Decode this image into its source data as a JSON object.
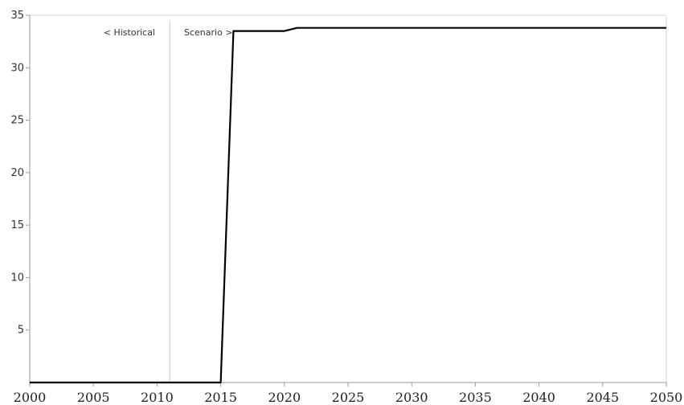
{
  "chart_data": {
    "type": "line",
    "title": "",
    "xlabel": "",
    "ylabel": "",
    "xlim": [
      2000,
      2050
    ],
    "ylim": [
      0,
      35
    ],
    "x_ticks": [
      2000,
      2005,
      2010,
      2015,
      2020,
      2025,
      2030,
      2035,
      2040,
      2045,
      2050
    ],
    "y_ticks": [
      5,
      10,
      15,
      20,
      25,
      30,
      35
    ],
    "grid": false,
    "divider_x": 2011,
    "annotations": {
      "historical": "< Historical",
      "scenario": "Scenario >"
    },
    "series": [
      {
        "color": "#000000",
        "points": [
          [
            2000,
            0
          ],
          [
            2015,
            0
          ],
          [
            2016,
            33.5
          ],
          [
            2020,
            33.5
          ],
          [
            2021,
            33.8
          ],
          [
            2050,
            33.8
          ]
        ]
      }
    ]
  }
}
